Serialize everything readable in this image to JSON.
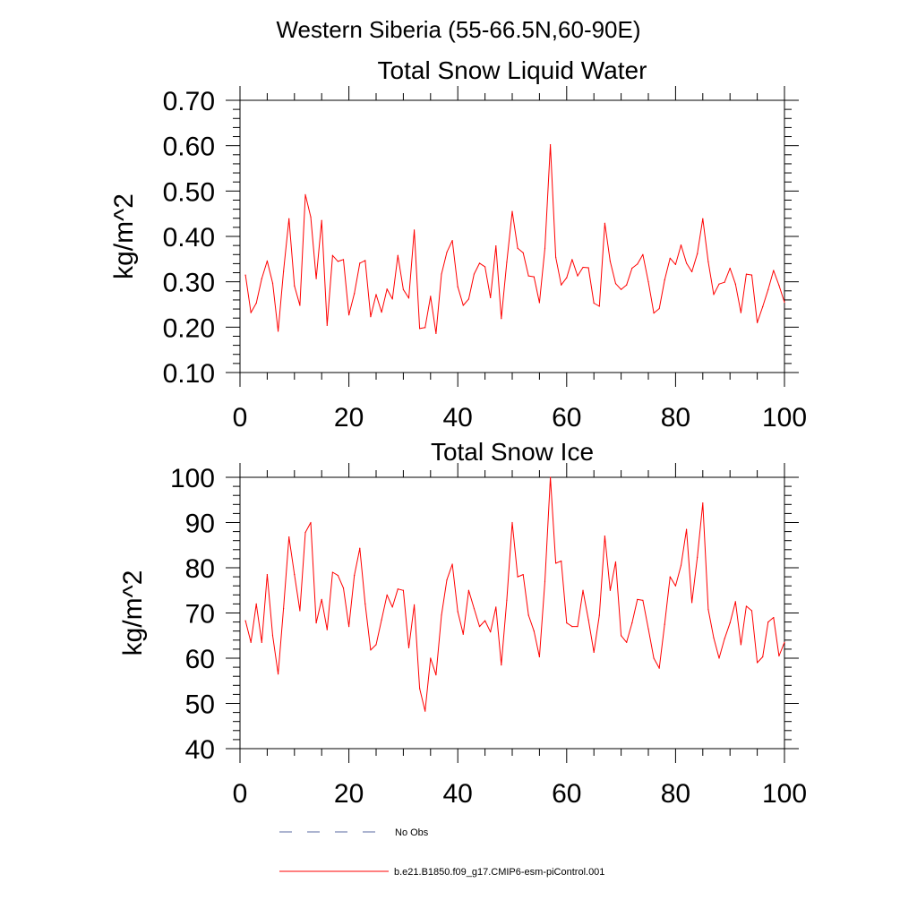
{
  "figure": {
    "title": "Western Siberia (55-66.5N,60-90E)"
  },
  "colors": {
    "model_line": "#ff0000",
    "obs_line": "#5a6aa0",
    "axis": "#000000"
  },
  "legend": {
    "placement": "bottom",
    "items": [
      {
        "label": "No Obs",
        "style": "dashed",
        "color": "#5a6aa0"
      },
      {
        "label": "b.e21.B1850.f09_g17.CMIP6-esm-piControl.001",
        "style": "solid",
        "color": "#ff0000"
      }
    ]
  },
  "chart_data": [
    {
      "type": "line",
      "title": "Total Snow Liquid Water",
      "xlabel": "",
      "ylabel": "kg/m^2",
      "xlim": [
        0,
        100
      ],
      "ylim": [
        0.1,
        0.7
      ],
      "xticks": [
        0,
        20,
        40,
        60,
        80,
        100
      ],
      "xtick_labels": [
        "0",
        "20",
        "40",
        "60",
        "80",
        "100"
      ],
      "yticks": [
        0.1,
        0.2,
        0.3,
        0.4,
        0.5,
        0.6,
        0.7
      ],
      "ytick_labels": [
        "0.10",
        "0.20",
        "0.30",
        "0.40",
        "0.50",
        "0.60",
        "0.70"
      ],
      "grid": false,
      "series": [
        {
          "name": "b.e21.B1850.f09_g17.CMIP6-esm-piControl.001",
          "color": "#ff0000",
          "x": [
            1,
            2,
            3,
            4,
            5,
            6,
            7,
            8,
            9,
            10,
            11,
            12,
            13,
            14,
            15,
            16,
            17,
            18,
            19,
            20,
            21,
            22,
            23,
            24,
            25,
            26,
            27,
            28,
            29,
            30,
            31,
            32,
            33,
            34,
            35,
            36,
            37,
            38,
            39,
            40,
            41,
            42,
            43,
            44,
            45,
            46,
            47,
            48,
            49,
            50,
            51,
            52,
            53,
            54,
            55,
            56,
            57,
            58,
            59,
            60,
            61,
            62,
            63,
            64,
            65,
            66,
            67,
            68,
            69,
            70,
            71,
            72,
            73,
            74,
            75,
            76,
            77,
            78,
            79,
            80,
            81,
            82,
            83,
            84,
            85,
            86,
            87,
            88,
            89,
            90,
            91,
            92,
            93,
            94,
            95,
            96,
            97,
            98,
            99,
            100
          ],
          "values": [
            0.315,
            0.232,
            0.253,
            0.307,
            0.346,
            0.297,
            0.191,
            0.323,
            0.439,
            0.291,
            0.248,
            0.492,
            0.443,
            0.307,
            0.435,
            0.204,
            0.358,
            0.345,
            0.349,
            0.227,
            0.274,
            0.341,
            0.347,
            0.223,
            0.272,
            0.233,
            0.284,
            0.262,
            0.358,
            0.283,
            0.264,
            0.414,
            0.197,
            0.199,
            0.268,
            0.186,
            0.317,
            0.365,
            0.391,
            0.289,
            0.248,
            0.262,
            0.317,
            0.341,
            0.333,
            0.265,
            0.379,
            0.219,
            0.343,
            0.455,
            0.374,
            0.364,
            0.313,
            0.311,
            0.254,
            0.374,
            0.602,
            0.354,
            0.293,
            0.309,
            0.349,
            0.313,
            0.332,
            0.331,
            0.253,
            0.246,
            0.429,
            0.345,
            0.296,
            0.283,
            0.293,
            0.33,
            0.339,
            0.36,
            0.3,
            0.231,
            0.241,
            0.304,
            0.352,
            0.338,
            0.381,
            0.341,
            0.322,
            0.362,
            0.439,
            0.344,
            0.272,
            0.295,
            0.299,
            0.33,
            0.295,
            0.232,
            0.317,
            0.315,
            0.21,
            0.245,
            0.283,
            0.325,
            0.292,
            0.255
          ]
        }
      ]
    },
    {
      "type": "line",
      "title": "Total Snow Ice",
      "xlabel": "",
      "ylabel": "kg/m^2",
      "xlim": [
        0,
        100
      ],
      "ylim": [
        40,
        100
      ],
      "xticks": [
        0,
        20,
        40,
        60,
        80,
        100
      ],
      "xtick_labels": [
        "0",
        "20",
        "40",
        "60",
        "80",
        "100"
      ],
      "yticks": [
        40,
        50,
        60,
        70,
        80,
        90,
        100
      ],
      "ytick_labels": [
        "40",
        "50",
        "60",
        "70",
        "80",
        "90",
        "100"
      ],
      "grid": false,
      "series": [
        {
          "name": "b.e21.B1850.f09_g17.CMIP6-esm-piControl.001",
          "color": "#ff0000",
          "x": [
            1,
            2,
            3,
            4,
            5,
            6,
            7,
            8,
            9,
            10,
            11,
            12,
            13,
            14,
            15,
            16,
            17,
            18,
            19,
            20,
            21,
            22,
            23,
            24,
            25,
            26,
            27,
            28,
            29,
            30,
            31,
            32,
            33,
            34,
            35,
            36,
            37,
            38,
            39,
            40,
            41,
            42,
            43,
            44,
            45,
            46,
            47,
            48,
            49,
            50,
            51,
            52,
            53,
            54,
            55,
            56,
            57,
            58,
            59,
            60,
            61,
            62,
            63,
            64,
            65,
            66,
            67,
            68,
            69,
            70,
            71,
            72,
            73,
            74,
            75,
            76,
            77,
            78,
            79,
            80,
            81,
            82,
            83,
            84,
            85,
            86,
            87,
            88,
            89,
            90,
            91,
            92,
            93,
            94,
            95,
            96,
            97,
            98,
            99,
            100
          ],
          "values": [
            68.3,
            63.5,
            72.0,
            63.5,
            78.5,
            65.0,
            56.5,
            71.0,
            86.8,
            78.5,
            70.5,
            87.8,
            90.0,
            67.8,
            73.0,
            66.3,
            79.0,
            78.3,
            75.5,
            67.0,
            78.3,
            84.3,
            72.0,
            61.8,
            63.0,
            68.5,
            74.0,
            71.3,
            75.3,
            75.0,
            62.3,
            71.8,
            53.3,
            48.3,
            60.0,
            56.3,
            69.5,
            77.3,
            80.8,
            70.3,
            65.3,
            75.0,
            71.0,
            67.0,
            68.3,
            65.8,
            71.3,
            58.5,
            72.8,
            90.0,
            78.0,
            78.5,
            69.5,
            66.0,
            60.3,
            77.0,
            100.0,
            81.0,
            81.5,
            67.8,
            67.0,
            67.0,
            75.0,
            68.5,
            61.3,
            69.5,
            87.0,
            75.0,
            81.3,
            65.0,
            63.5,
            67.8,
            73.0,
            72.8,
            66.5,
            60.0,
            57.8,
            67.5,
            78.0,
            76.0,
            80.5,
            88.5,
            72.3,
            82.3,
            94.3,
            70.8,
            64.5,
            60.0,
            64.3,
            67.8,
            72.5,
            63.0,
            71.5,
            70.5,
            59.0,
            60.3,
            68.0,
            69.0,
            60.5,
            63.5
          ]
        }
      ]
    }
  ]
}
